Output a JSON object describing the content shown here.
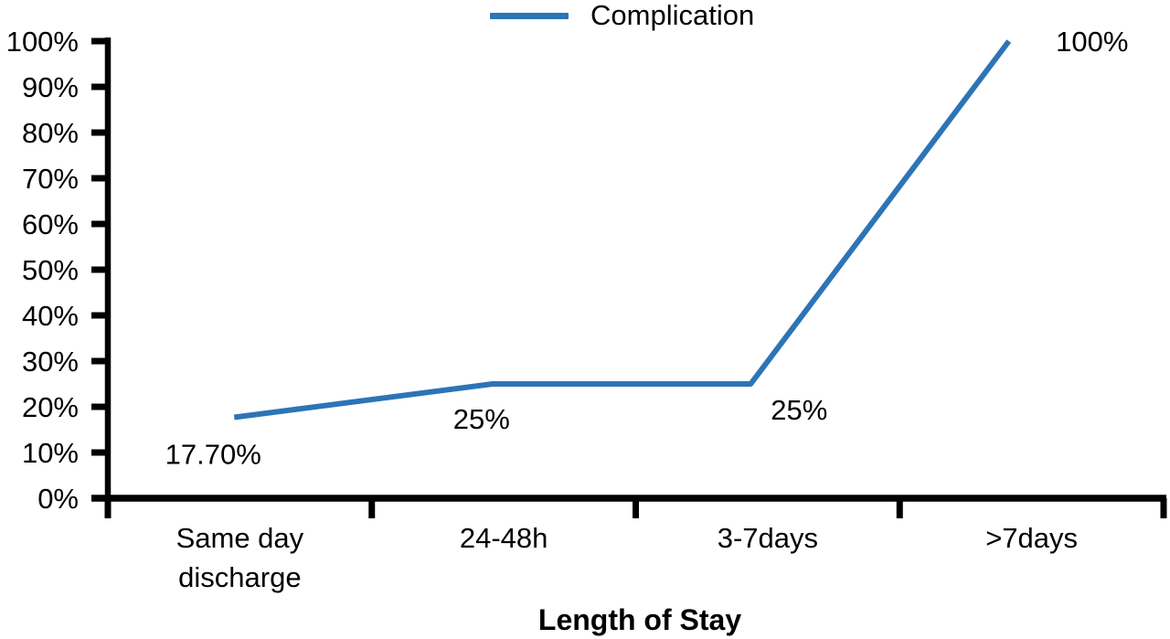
{
  "chart_data": {
    "type": "line",
    "title": "",
    "legend": "Complication",
    "xlabel": "Length of Stay",
    "ylabel": "",
    "categories": [
      "Same day\ndischarge",
      "24-48h",
      "3-7days",
      ">7days"
    ],
    "series": [
      {
        "name": "Complication",
        "values": [
          17.7,
          25,
          25,
          100
        ]
      }
    ],
    "data_labels": [
      "17.70%",
      "25%",
      "25%",
      "100%"
    ],
    "y_axis": {
      "min": 0,
      "max": 100,
      "step": 10,
      "tick_labels": [
        "0%",
        "10%",
        "20%",
        "30%",
        "40%",
        "50%",
        "60%",
        "70%",
        "80%",
        "90%",
        "100%"
      ],
      "unit": "%"
    },
    "grid": "off",
    "legend_position": "top-center",
    "line_color": "#2d74b6",
    "axis_color": "#000000",
    "label_color": "#000000"
  }
}
